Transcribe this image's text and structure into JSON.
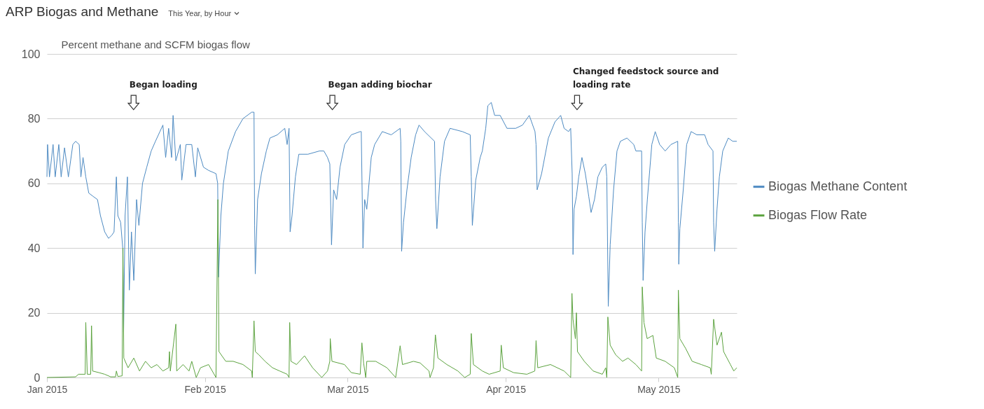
{
  "chart_data": {
    "type": "line",
    "title": "ARP Biogas and Methane",
    "subtitle": "This Year, by Hour",
    "ylabel": "Percent methane and SCFM biogas flow",
    "xlim": [
      "2015-01-01T00:00",
      "2015-05-16T08:00"
    ],
    "xticks": [
      {
        "value": "2015-01-01",
        "label": "Jan 2015"
      },
      {
        "value": "2015-02-01",
        "label": "Feb 2015"
      },
      {
        "value": "2015-03-01",
        "label": "Mar 2015"
      },
      {
        "value": "2015-04-01",
        "label": "Apr 2015"
      },
      {
        "value": "2015-05-01",
        "label": "May 2015"
      }
    ],
    "ylim": [
      0,
      100
    ],
    "yticks": [
      0,
      20,
      40,
      60,
      80,
      100
    ],
    "grid": "y",
    "legend": "right",
    "annotations": [
      {
        "text": "Began loading",
        "x": "2015-01-18",
        "y": 85
      },
      {
        "text": "Began adding biochar",
        "x": "2015-02-26",
        "y": 85
      },
      {
        "text": "Changed feedstock source and loading rate",
        "x": "2015-04-15",
        "y": 85
      }
    ],
    "series": [
      {
        "name": "Biogas Methane Content",
        "color": "#4d8ac2",
        "x": [
          "2015-01-01T00:00",
          "2015-01-01T03:00",
          "2015-01-01T12:00",
          "2015-01-02T05:00",
          "2015-01-02T15:00",
          "2015-01-03T08:00",
          "2015-01-03T19:00",
          "2015-01-04T11:00",
          "2015-01-05T05:00",
          "2015-01-06T02:00",
          "2015-01-06T15:00",
          "2015-01-07T08:00",
          "2015-01-07T16:00",
          "2015-01-08T02:00",
          "2015-01-08T15:00",
          "2015-01-09T05:00",
          "2015-01-10T01:00",
          "2015-01-10T22:00",
          "2015-01-11T12:00",
          "2015-01-12T08:00",
          "2015-01-13T02:00",
          "2015-01-13T18:00",
          "2015-01-14T04:00",
          "2015-01-14T15:00",
          "2015-01-14T22:00",
          "2015-01-15T11:00",
          "2015-01-15T21:00",
          "2015-01-16T01:00",
          "2015-01-16T08:00",
          "2015-01-16T19:00",
          "2015-01-17T04:00",
          "2015-01-17T14:00",
          "2015-01-18T01:00",
          "2015-01-18T14:00",
          "2015-01-19T01:00",
          "2015-01-19T18:00",
          "2015-01-20T14:00",
          "2015-01-21T11:00",
          "2015-01-22T07:00",
          "2015-01-23T04:00",
          "2015-01-23T18:00",
          "2015-01-24T07:00",
          "2015-01-24T21:00",
          "2015-01-25T11:00",
          "2015-01-25T18:00",
          "2015-01-26T07:00",
          "2015-01-27T04:00",
          "2015-01-27T11:00",
          "2015-01-28T07:00",
          "2015-01-29T10:00",
          "2015-01-30T03:00",
          "2015-01-30T14:00",
          "2015-01-31T17:00",
          "2015-02-01T17:00",
          "2015-02-03T04:00",
          "2015-02-03T12:00",
          "2015-02-03T16:00",
          "2015-02-04T03:00",
          "2015-02-04T15:00",
          "2015-02-05T14:00",
          "2015-02-07T00:00",
          "2015-02-08T11:00",
          "2015-02-10T04:00",
          "2015-02-10T15:00",
          "2015-02-10T18:00",
          "2015-02-10T21:00",
          "2015-02-11T08:00",
          "2015-02-12T02:00",
          "2015-02-13T01:00",
          "2015-02-13T18:00",
          "2015-02-15T05:00",
          "2015-02-16T16:00",
          "2015-02-17T03:00",
          "2015-02-17T12:00",
          "2015-02-17T17:00",
          "2015-02-18T02:00",
          "2015-02-18T18:00",
          "2015-02-19T10:00",
          "2015-02-21T05:00",
          "2015-02-23T11:00",
          "2015-02-24T08:00",
          "2015-02-25T01:00",
          "2015-02-25T12:00",
          "2015-02-25T20:00",
          "2015-02-26T06:00",
          "2015-02-26T20:00",
          "2015-02-27T12:00",
          "2015-02-28T10:00",
          "2015-03-01T17:00",
          "2015-03-03T11:00",
          "2015-03-03T16:00",
          "2015-03-04T00:00",
          "2015-03-04T08:00",
          "2015-03-04T18:00",
          "2015-03-05T15:00",
          "2015-03-06T07:00",
          "2015-03-07T19:00",
          "2015-03-09T13:00",
          "2015-03-11T07:00",
          "2015-03-11T10:00",
          "2015-03-11T14:00",
          "2015-03-11T23:00",
          "2015-03-12T15:00",
          "2015-03-13T11:00",
          "2015-03-14T08:00",
          "2015-03-15T00:00",
          "2015-03-16T02:00",
          "2015-03-18T01:00",
          "2015-03-18T06:00",
          "2015-03-18T12:00",
          "2015-03-19T03:00",
          "2015-03-20T00:00",
          "2015-03-21T02:00",
          "2015-03-23T12:00",
          "2015-03-25T01:00",
          "2015-03-25T06:00",
          "2015-03-25T11:00",
          "2015-03-26T03:00",
          "2015-03-27T00:00",
          "2015-03-27T10:00",
          "2015-03-28T02:00",
          "2015-03-28T12:00",
          "2015-03-29T04:00",
          "2015-03-29T20:00",
          "2015-03-30T22:00",
          "2015-04-01T06:00",
          "2015-04-02T23:00",
          "2015-04-04T07:00",
          "2015-04-05T15:00",
          "2015-04-06T18:00",
          "2015-04-06T23:00",
          "2015-04-07T04:00",
          "2015-04-08T01:00",
          "2015-04-09T09:00",
          "2015-04-10T16:00",
          "2015-04-11T19:00",
          "2015-04-12T11:00",
          "2015-04-13T08:00",
          "2015-04-13T18:00",
          "2015-04-14T01:00",
          "2015-04-14T05:00",
          "2015-04-14T10:00",
          "2015-04-14T21:00",
          "2015-04-15T08:00",
          "2015-04-15T23:00",
          "2015-04-16T15:00",
          "2015-04-17T07:00",
          "2015-04-17T18:00",
          "2015-04-18T10:00",
          "2015-04-19T02:00",
          "2015-04-19T23:00",
          "2015-04-20T15:00",
          "2015-04-20T20:00",
          "2015-04-21T03:00",
          "2015-04-21T12:00",
          "2015-04-22T04:00",
          "2015-04-22T20:00",
          "2015-04-23T12:00",
          "2015-04-24T19:00",
          "2015-04-26T03:00",
          "2015-04-26T13:00",
          "2015-04-27T16:00",
          "2015-04-27T19:00",
          "2015-04-27T23:00",
          "2015-04-28T08:00",
          "2015-04-28T19:00",
          "2015-04-29T16:00",
          "2015-04-30T08:00",
          "2015-05-01T05:00",
          "2015-05-02T07:00",
          "2015-05-03T10:00",
          "2015-05-04T18:00",
          "2015-05-04T21:00",
          "2015-05-04T23:00",
          "2015-05-05T04:00",
          "2015-05-05T20:00",
          "2015-05-06T12:00",
          "2015-05-07T09:00",
          "2015-05-08T12:00",
          "2015-05-10T01:00",
          "2015-05-10T17:00",
          "2015-05-11T16:00",
          "2015-05-11T19:00",
          "2015-05-12T00:00",
          "2015-05-12T11:00",
          "2015-05-12T22:00",
          "2015-05-13T14:00",
          "2015-05-14T16:00",
          "2015-05-15T13:00",
          "2015-05-16T08:00"
        ],
        "values": [
          62,
          72,
          62,
          72,
          62,
          72,
          62,
          71,
          62,
          72,
          73,
          72,
          62,
          68,
          62,
          57,
          56,
          55,
          50,
          45,
          43,
          44,
          45,
          62,
          50,
          48,
          40,
          14,
          50,
          62,
          27,
          45,
          30,
          55,
          47,
          60,
          65,
          70,
          73,
          76,
          78,
          68,
          77,
          68,
          81,
          67,
          72,
          61,
          72,
          72,
          62,
          71,
          65,
          64,
          63,
          60,
          31,
          50,
          60,
          70,
          76,
          80,
          82,
          82,
          47,
          32,
          55,
          63,
          70,
          74,
          75,
          77,
          72,
          77,
          45,
          50,
          62,
          69,
          69,
          70,
          70,
          68,
          66,
          41,
          58,
          55,
          65,
          72,
          75,
          76,
          76,
          40,
          55,
          52,
          68,
          72,
          76,
          75,
          77,
          73,
          39,
          48,
          58,
          68,
          75,
          78,
          76,
          73,
          55,
          46,
          62,
          73,
          77,
          76,
          75,
          62,
          47,
          61,
          68,
          70,
          77,
          84,
          85,
          81,
          81,
          77,
          77,
          78,
          81,
          76,
          72,
          58,
          63,
          74,
          79,
          81,
          77,
          76,
          77,
          63,
          38,
          52,
          56,
          62,
          68,
          63,
          56,
          51,
          55,
          62,
          65,
          66,
          62,
          22,
          41,
          58,
          70,
          73,
          74,
          72,
          70,
          70,
          48,
          30,
          45,
          55,
          72,
          76,
          72,
          70,
          72,
          73,
          48,
          35,
          46,
          58,
          72,
          76,
          75,
          75,
          72,
          70,
          48,
          39,
          52,
          62,
          70,
          74,
          73,
          73
        ]
      },
      {
        "name": "Biogas Flow Rate",
        "color": "#5ca33f",
        "x": [
          "2015-01-01T00:00",
          "2015-01-06T15:00",
          "2015-01-07T05:00",
          "2015-01-08T12:00",
          "2015-01-08T15:00",
          "2015-01-08T22:00",
          "2015-01-09T14:00",
          "2015-01-09T18:00",
          "2015-01-09T23:00",
          "2015-01-11T05:00",
          "2015-01-12T08:00",
          "2015-01-13T12:00",
          "2015-01-14T11:00",
          "2015-01-14T15:00",
          "2015-01-14T22:00",
          "2015-01-15T18:00",
          "2015-01-15T22:00",
          "2015-01-16T02:00",
          "2015-01-16T22:00",
          "2015-01-18T01:00",
          "2015-01-19T04:00",
          "2015-01-20T08:00",
          "2015-01-21T11:00",
          "2015-01-22T14:00",
          "2015-01-23T18:00",
          "2015-01-24T21:00",
          "2015-01-25T01:00",
          "2015-01-25T05:00",
          "2015-01-26T07:00",
          "2015-01-26T11:00",
          "2015-01-27T17:00",
          "2015-01-28T21:00",
          "2015-01-29T10:00",
          "2015-01-30T07:00",
          "2015-01-31T03:00",
          "2015-02-01T17:00",
          "2015-02-03T04:00",
          "2015-02-03T13:00",
          "2015-02-03T18:00",
          "2015-02-05T02:00",
          "2015-02-06T13:00",
          "2015-02-08T11:00",
          "2015-02-10T04:00",
          "2015-02-10T07:00",
          "2015-02-10T15:00",
          "2015-02-10T21:00",
          "2015-02-11T14:00",
          "2015-02-12T19:00",
          "2015-02-14T06:00",
          "2015-02-15T16:00",
          "2015-02-17T03:00",
          "2015-02-17T12:00",
          "2015-02-17T15:00",
          "2015-02-17T21:00",
          "2015-02-18T23:00",
          "2015-02-20T13:00",
          "2015-02-22T03:00",
          "2015-02-23T22:00",
          "2015-02-25T01:00",
          "2015-02-25T12:00",
          "2015-02-25T14:00",
          "2015-02-25T22:00",
          "2015-02-28T09:00",
          "2015-03-01T17:00",
          "2015-03-03T11:00",
          "2015-03-03T19:00",
          "2015-03-04T03:00",
          "2015-03-04T13:00",
          "2015-03-04T18:00",
          "2015-03-06T12:00",
          "2015-03-08T17:00",
          "2015-03-10T10:00",
          "2015-03-11T07:00",
          "2015-03-11T18:00",
          "2015-03-13T22:00",
          "2015-03-15T05:00",
          "2015-03-16T23:00",
          "2015-03-17T04:00",
          "2015-03-17T20:00",
          "2015-03-18T05:00",
          "2015-03-18T17:00",
          "2015-03-20T11:00",
          "2015-03-22T15:00",
          "2015-03-23T23:00",
          "2015-03-25T01:00",
          "2015-03-25T06:00",
          "2015-03-25T16:00",
          "2015-03-27T10:00",
          "2015-03-28T18:00",
          "2015-03-30T22:00",
          "2015-03-31T03:00",
          "2015-03-31T13:00",
          "2015-04-02T13:00",
          "2015-04-05T04:00",
          "2015-04-06T17:00",
          "2015-04-06T23:00",
          "2015-04-07T07:00",
          "2015-04-09T19:00",
          "2015-04-12T11:00",
          "2015-04-13T18:00",
          "2015-04-14T00:00",
          "2015-04-14T05:00",
          "2015-04-14T16:00",
          "2015-04-14T21:00",
          "2015-04-15T02:00",
          "2015-04-16T10:00",
          "2015-04-18T04:00",
          "2015-04-19T23:00",
          "2015-04-20T15:00",
          "2015-04-20T20:00",
          "2015-04-21T01:00",
          "2015-04-21T12:00",
          "2015-04-22T14:00",
          "2015-04-23T22:00",
          "2015-04-25T00:00",
          "2015-04-26T13:00",
          "2015-04-27T16:00",
          "2015-04-27T19:00",
          "2015-04-28T03:00",
          "2015-04-28T18:00",
          "2015-04-29T21:00",
          "2015-04-30T13:00",
          "2015-05-02T07:00",
          "2015-05-04T02:00",
          "2015-05-04T18:00",
          "2015-05-04T21:00",
          "2015-05-05T04:00",
          "2015-05-06T07:00",
          "2015-05-07T14:00",
          "2015-05-09T09:00",
          "2015-05-11T03:00",
          "2015-05-11T08:00",
          "2015-05-11T19:00",
          "2015-05-12T11:00",
          "2015-05-13T08:00",
          "2015-05-13T18:00",
          "2015-05-15T02:00",
          "2015-05-15T18:00",
          "2015-05-16T08:00"
        ],
        "values": [
          0,
          0.2,
          1,
          1,
          17,
          1,
          1,
          16,
          2,
          1.5,
          1,
          0.2,
          0.2,
          2,
          0.3,
          0.5,
          40,
          6,
          3,
          6,
          2,
          5,
          3,
          4,
          2,
          3,
          8,
          2,
          16.5,
          2,
          4,
          2,
          5,
          0,
          3,
          4,
          0,
          55,
          8,
          5,
          5,
          4,
          2,
          0,
          17.5,
          8,
          7,
          5,
          3,
          2,
          1,
          0,
          17,
          5,
          4,
          6.7,
          3,
          0,
          2,
          5,
          12,
          5,
          4,
          1.5,
          1,
          10.7,
          4.5,
          0,
          5,
          5,
          3,
          0,
          9.8,
          4,
          5,
          4.5,
          2,
          0,
          3,
          13.2,
          6,
          4,
          2,
          0,
          1,
          13.6,
          4,
          2,
          1,
          2,
          10,
          3,
          1.5,
          1,
          2,
          11.4,
          3,
          4,
          2,
          0,
          26,
          18,
          12,
          20,
          8,
          5,
          2,
          1,
          3,
          0,
          18.7,
          10,
          7,
          5,
          6,
          4,
          2,
          28,
          17,
          12,
          13,
          6,
          5,
          3,
          0,
          27,
          12,
          9,
          5,
          4,
          3,
          1,
          18,
          10,
          14,
          8,
          4,
          2,
          3
        ]
      }
    ]
  }
}
